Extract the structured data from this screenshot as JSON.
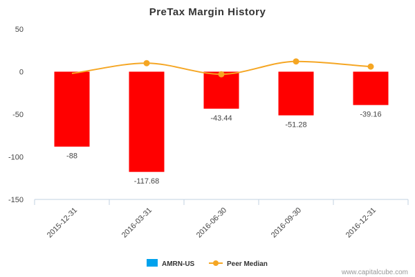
{
  "chart_data": {
    "type": "bar",
    "title": "PreTax Margin History",
    "categories": [
      "2015-12-31",
      "2016-03-31",
      "2016-06-30",
      "2016-09-30",
      "2016-12-31"
    ],
    "series": [
      {
        "name": "AMRN-US",
        "kind": "bar",
        "values": [
          -88,
          -117.68,
          -43.44,
          -51.28,
          -39.16
        ],
        "data_labels": [
          "-88",
          "-117.68",
          "-43.44",
          "-51.28",
          "-39.16"
        ],
        "bar_color": "#ff0000",
        "legend_color": "#00a2ed"
      },
      {
        "name": "Peer Median",
        "kind": "line",
        "values": [
          -2,
          10,
          -3,
          12,
          6
        ],
        "color": "#f5a623"
      }
    ],
    "ylim": [
      -150,
      50
    ],
    "yticks": [
      50,
      0,
      -50,
      -100,
      -150
    ],
    "ytick_labels": [
      "50",
      "0",
      "-50",
      "-100",
      "-150"
    ],
    "xlabel": "",
    "ylabel": "",
    "grid": false,
    "legend_position": "bottom-center"
  },
  "credit": "www.capitalcube.com"
}
